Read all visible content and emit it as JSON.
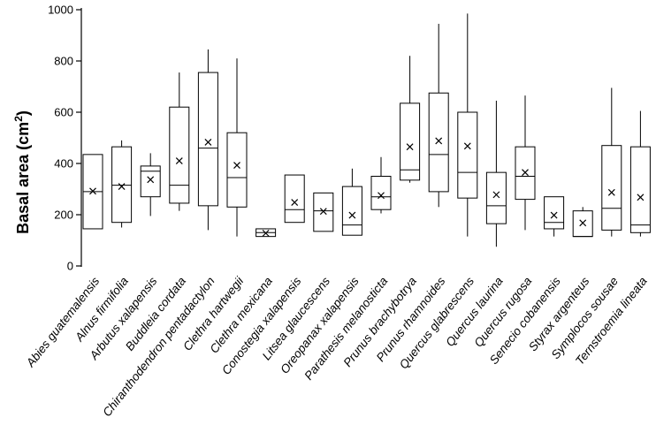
{
  "chart_data": {
    "type": "box",
    "title": "",
    "xlabel": "",
    "ylabel": "Basal area (cm",
    "ylabel_superscript": "2",
    "ylabel_suffix": ")",
    "ylim": [
      0,
      1000
    ],
    "yticks": [
      0,
      200,
      400,
      600,
      800,
      1000
    ],
    "categories": [
      "Abies guatemalensis",
      "Alnus firmifolia",
      "Arbutus xalapensis",
      "Buddleia cordata",
      "Chiranthodendron pentadactylon",
      "Clethra hartwegii",
      "Clethra mexicana",
      "Conostegia xalapensis",
      "Litsea glaucescens",
      "Oreopanax xalapensis",
      "Parathesis melanosticta",
      "Prunus brachybotrya",
      "Prunus rhamnoides",
      "Quercus glabrescens",
      "Quercus laurina",
      "Quercus rugosa",
      "Senecio cobanensis",
      "Styrax argenteus",
      "Symplocos sousae",
      "Ternstroemia lineata"
    ],
    "boxes": [
      {
        "min": 145,
        "q1": 145,
        "median": 290,
        "q3": 435,
        "max": 435,
        "mean": 292
      },
      {
        "min": 150,
        "q1": 170,
        "median": 315,
        "q3": 465,
        "max": 490,
        "mean": 310
      },
      {
        "min": 195,
        "q1": 270,
        "median": 370,
        "q3": 390,
        "max": 440,
        "mean": 337
      },
      {
        "min": 215,
        "q1": 245,
        "median": 315,
        "q3": 620,
        "max": 755,
        "mean": 410
      },
      {
        "min": 140,
        "q1": 235,
        "median": 460,
        "q3": 755,
        "max": 845,
        "mean": 483
      },
      {
        "min": 115,
        "q1": 230,
        "median": 345,
        "q3": 520,
        "max": 810,
        "mean": 393
      },
      {
        "min": 115,
        "q1": 115,
        "median": 130,
        "q3": 145,
        "max": 145,
        "mean": 128
      },
      {
        "min": 170,
        "q1": 170,
        "median": 220,
        "q3": 355,
        "max": 355,
        "mean": 248
      },
      {
        "min": 135,
        "q1": 135,
        "median": 215,
        "q3": 285,
        "max": 285,
        "mean": 213
      },
      {
        "min": 120,
        "q1": 120,
        "median": 160,
        "q3": 310,
        "max": 380,
        "mean": 198
      },
      {
        "min": 205,
        "q1": 220,
        "median": 270,
        "q3": 350,
        "max": 425,
        "mean": 275
      },
      {
        "min": 325,
        "q1": 335,
        "median": 375,
        "q3": 635,
        "max": 820,
        "mean": 465
      },
      {
        "min": 230,
        "q1": 290,
        "median": 435,
        "q3": 675,
        "max": 945,
        "mean": 488
      },
      {
        "min": 115,
        "q1": 265,
        "median": 365,
        "q3": 600,
        "max": 985,
        "mean": 468
      },
      {
        "min": 75,
        "q1": 165,
        "median": 235,
        "q3": 365,
        "max": 645,
        "mean": 278
      },
      {
        "min": 140,
        "q1": 260,
        "median": 350,
        "q3": 465,
        "max": 665,
        "mean": 365
      },
      {
        "min": 115,
        "q1": 145,
        "median": 170,
        "q3": 270,
        "max": 270,
        "mean": 198
      },
      {
        "min": 115,
        "q1": 115,
        "median": 115,
        "q3": 215,
        "max": 230,
        "mean": 168
      },
      {
        "min": 115,
        "q1": 140,
        "median": 225,
        "q3": 470,
        "max": 695,
        "mean": 287
      },
      {
        "min": 115,
        "q1": 130,
        "median": 160,
        "q3": 465,
        "max": 605,
        "mean": 268
      }
    ]
  }
}
